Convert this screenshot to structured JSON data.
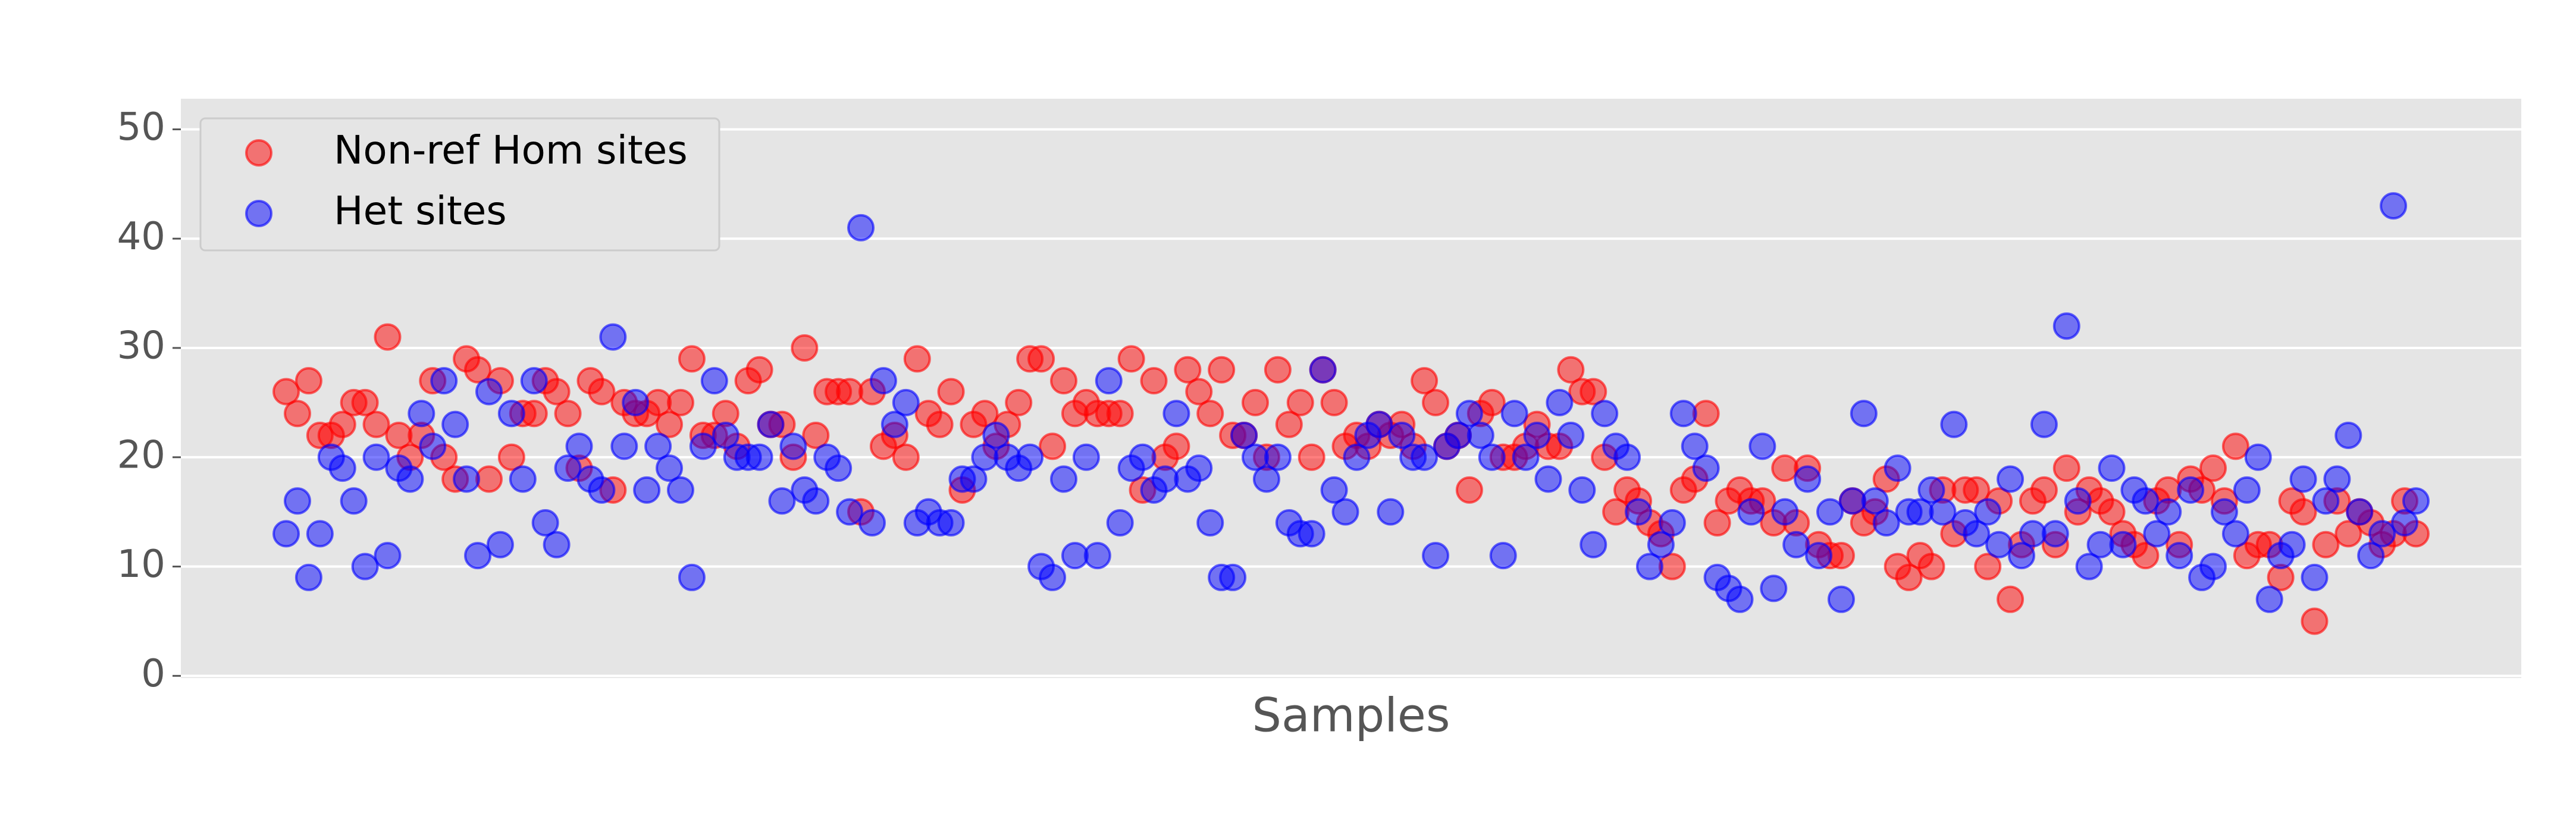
{
  "chart_data": {
    "type": "scatter",
    "xlabel": "Samples",
    "legend": "upper left",
    "grid": true,
    "categories": [
      null,
      null,
      null,
      null,
      null,
      null,
      null,
      null,
      null,
      null,
      null,
      null,
      null,
      null,
      null,
      null,
      null,
      null,
      null,
      null,
      null,
      null,
      null,
      null,
      null,
      null,
      null,
      null,
      null,
      null,
      null,
      null,
      null,
      null,
      null,
      null,
      null,
      null,
      null,
      null,
      null,
      null,
      null,
      null,
      null,
      null,
      null,
      null,
      null,
      null,
      null,
      null,
      null,
      null,
      null,
      null,
      null,
      null,
      null,
      null,
      null,
      null,
      null,
      null,
      null,
      null,
      null,
      null,
      null,
      null,
      null,
      null,
      null,
      null,
      null,
      null,
      null,
      null,
      null,
      null,
      null,
      null,
      null,
      null,
      null,
      null,
      null,
      null,
      null,
      null,
      null,
      null,
      null,
      null,
      null,
      null,
      null,
      null,
      null,
      null,
      null,
      null,
      null,
      null,
      null,
      null,
      null,
      null,
      null,
      null,
      null,
      null,
      null,
      null,
      null,
      null,
      null,
      null,
      null,
      null,
      null,
      null,
      null,
      null,
      null,
      null,
      null,
      null,
      null,
      null,
      null,
      null,
      null,
      null,
      null,
      null,
      null,
      null,
      null,
      null,
      null,
      null,
      null,
      null,
      null,
      null,
      null,
      null,
      null,
      null,
      null,
      null,
      null,
      null,
      null,
      null,
      null,
      null,
      null,
      null,
      null,
      null,
      null,
      null,
      null,
      null,
      null,
      null,
      null,
      null,
      null,
      null,
      null,
      null,
      null,
      null,
      null,
      null,
      null,
      null,
      null,
      null,
      null,
      null,
      null,
      null,
      null,
      null,
      null,
      null
    ],
    "series": [
      {
        "name": "Non-ref Hom sites",
        "color": "#ff0000",
        "values": [
          26,
          24,
          27,
          22,
          22,
          23,
          25,
          25,
          23,
          31,
          22,
          20,
          22,
          27,
          20,
          18,
          29,
          28,
          18,
          27,
          20,
          24,
          24,
          27,
          26,
          24,
          19,
          27,
          26,
          17,
          25,
          24,
          24,
          25,
          23,
          25,
          29,
          22,
          22,
          24,
          21,
          27,
          28,
          23,
          23,
          20,
          30,
          22,
          26,
          26,
          26,
          15,
          26,
          21,
          22,
          20,
          29,
          24,
          23,
          26,
          17,
          23,
          24,
          21,
          23,
          25,
          29,
          29,
          21,
          27,
          24,
          25,
          24,
          24,
          24,
          29,
          17,
          27,
          20,
          21,
          28,
          26,
          24,
          28,
          22,
          22,
          25,
          20,
          28,
          23,
          25,
          20,
          28,
          25,
          21,
          22,
          21,
          23,
          22,
          23,
          21,
          27,
          25,
          21,
          22,
          17,
          24,
          25,
          20,
          20,
          21,
          23,
          21,
          21,
          28,
          26,
          26,
          20,
          15,
          17,
          16,
          14,
          13,
          10,
          17,
          18,
          24,
          14,
          16,
          17,
          16,
          16,
          14,
          19,
          14,
          19,
          12,
          11,
          11,
          16,
          14,
          15,
          18,
          10,
          9,
          11,
          10,
          17,
          13,
          17,
          17,
          10,
          16,
          7,
          12,
          16,
          17,
          12,
          19,
          15,
          17,
          16,
          15,
          13,
          12,
          11,
          16,
          17,
          12,
          18,
          17,
          19,
          16,
          21,
          11,
          12,
          12,
          9,
          16,
          15,
          5,
          12,
          16,
          13,
          15,
          14,
          12,
          13,
          16,
          13
        ]
      },
      {
        "name": "Het sites",
        "color": "#0000ff",
        "values": [
          13,
          16,
          9,
          13,
          20,
          19,
          16,
          10,
          20,
          11,
          19,
          18,
          24,
          21,
          27,
          23,
          18,
          11,
          26,
          12,
          24,
          18,
          27,
          14,
          12,
          19,
          21,
          18,
          17,
          31,
          21,
          25,
          17,
          21,
          19,
          17,
          9,
          21,
          27,
          22,
          20,
          20,
          20,
          23,
          16,
          21,
          17,
          16,
          20,
          19,
          15,
          41,
          14,
          27,
          23,
          25,
          14,
          15,
          14,
          14,
          18,
          18,
          20,
          22,
          20,
          19,
          20,
          10,
          9,
          18,
          11,
          20,
          11,
          27,
          14,
          19,
          20,
          17,
          18,
          24,
          18,
          19,
          14,
          9,
          9,
          22,
          20,
          18,
          20,
          14,
          13,
          13,
          28,
          17,
          15,
          20,
          22,
          23,
          15,
          22,
          20,
          20,
          11,
          21,
          22,
          24,
          22,
          20,
          11,
          24,
          20,
          22,
          18,
          25,
          22,
          17,
          12,
          24,
          21,
          20,
          15,
          10,
          12,
          14,
          24,
          21,
          19,
          9,
          8,
          7,
          15,
          21,
          8,
          15,
          12,
          18,
          11,
          15,
          7,
          16,
          24,
          16,
          14,
          19,
          15,
          15,
          17,
          15,
          23,
          14,
          13,
          15,
          12,
          18,
          11,
          13,
          23,
          13,
          32,
          16,
          10,
          12,
          19,
          12,
          17,
          16,
          13,
          15,
          11,
          17,
          9,
          10,
          15,
          13,
          17,
          20,
          7,
          11,
          12,
          18,
          9,
          16,
          18,
          22,
          15,
          11,
          13,
          43,
          14,
          16
        ]
      }
    ],
    "ylim": [
      -0.2,
      52.8
    ],
    "yticks": [
      0,
      10,
      20,
      30,
      40,
      50
    ]
  }
}
